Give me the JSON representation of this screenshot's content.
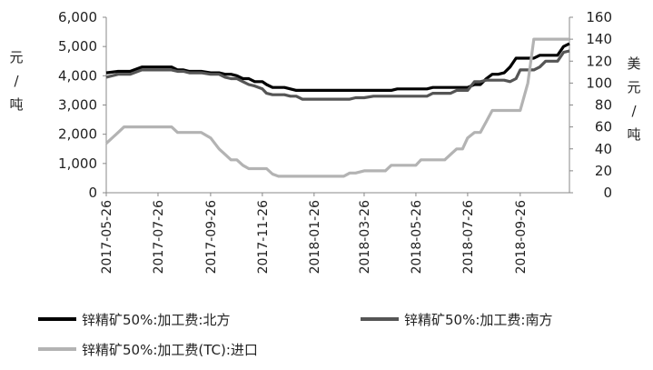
{
  "chart_data": {
    "type": "line",
    "x_tick_labels": [
      "2017-05-26",
      "2017-07-26",
      "2017-09-26",
      "2017-11-26",
      "2018-01-26",
      "2018-03-26",
      "2018-05-26",
      "2018-07-26",
      "2018-09-26"
    ],
    "left_axis": {
      "label_chars": [
        "元",
        "/",
        "吨"
      ],
      "ylim": [
        0,
        6000
      ],
      "ticks": [
        "0",
        "1,000",
        "2,000",
        "3,000",
        "4,000",
        "5,000",
        "6,000"
      ]
    },
    "right_axis": {
      "label_chars": [
        "美",
        "元",
        "/",
        "吨"
      ],
      "ylim": [
        0,
        160
      ],
      "ticks": [
        "0",
        "20",
        "40",
        "60",
        "80",
        "100",
        "120",
        "140",
        "160"
      ]
    },
    "grid": false,
    "legend_position": "bottom",
    "x_dates": [
      "2017-05-26",
      "2017-06-09",
      "2017-06-16",
      "2017-06-23",
      "2017-07-07",
      "2017-07-14",
      "2017-07-26",
      "2017-08-04",
      "2017-08-11",
      "2017-08-18",
      "2017-08-25",
      "2017-09-01",
      "2017-09-15",
      "2017-09-26",
      "2017-10-06",
      "2017-10-13",
      "2017-10-20",
      "2017-10-27",
      "2017-11-03",
      "2017-11-10",
      "2017-11-17",
      "2017-11-26",
      "2017-12-01",
      "2017-12-08",
      "2017-12-15",
      "2017-12-22",
      "2017-12-29",
      "2018-01-05",
      "2018-01-12",
      "2018-01-19",
      "2018-01-26",
      "2018-02-02",
      "2018-02-09",
      "2018-02-23",
      "2018-03-02",
      "2018-03-09",
      "2018-03-16",
      "2018-03-26",
      "2018-04-06",
      "2018-04-13",
      "2018-04-20",
      "2018-04-27",
      "2018-05-04",
      "2018-05-11",
      "2018-05-18",
      "2018-05-26",
      "2018-06-01",
      "2018-06-08",
      "2018-06-15",
      "2018-06-22",
      "2018-06-29",
      "2018-07-06",
      "2018-07-13",
      "2018-07-20",
      "2018-07-26",
      "2018-08-03",
      "2018-08-10",
      "2018-08-17",
      "2018-08-24",
      "2018-08-31",
      "2018-09-07",
      "2018-09-14",
      "2018-09-21",
      "2018-09-26",
      "2018-10-05",
      "2018-10-12",
      "2018-10-19",
      "2018-10-26",
      "2018-11-02",
      "2018-11-09",
      "2018-11-16",
      "2018-11-23"
    ],
    "series": [
      {
        "name": "锌精矿50%:加工费:北方",
        "axis": "left",
        "color": "#000000",
        "values": [
          4100,
          4150,
          4150,
          4150,
          4300,
          4300,
          4300,
          4300,
          4300,
          4200,
          4200,
          4150,
          4150,
          4100,
          4100,
          4050,
          4050,
          4000,
          3900,
          3900,
          3800,
          3800,
          3700,
          3600,
          3600,
          3600,
          3550,
          3500,
          3500,
          3500,
          3500,
          3500,
          3500,
          3500,
          3500,
          3500,
          3500,
          3500,
          3500,
          3500,
          3500,
          3500,
          3550,
          3550,
          3550,
          3550,
          3550,
          3550,
          3600,
          3600,
          3600,
          3600,
          3600,
          3600,
          3600,
          3700,
          3700,
          3900,
          4050,
          4050,
          4100,
          4300,
          4600,
          4600,
          4600,
          4600,
          4700,
          4700,
          4700,
          4700,
          5000,
          5100
        ]
      },
      {
        "name": "锌精矿50%:加工费:南方",
        "axis": "left",
        "color": "#555555",
        "values": [
          3950,
          4050,
          4050,
          4050,
          4200,
          4200,
          4200,
          4200,
          4200,
          4150,
          4150,
          4100,
          4100,
          4050,
          4050,
          3950,
          3900,
          3900,
          3800,
          3700,
          3650,
          3550,
          3400,
          3350,
          3350,
          3350,
          3300,
          3300,
          3200,
          3200,
          3200,
          3200,
          3200,
          3200,
          3200,
          3200,
          3250,
          3250,
          3300,
          3300,
          3300,
          3300,
          3300,
          3300,
          3300,
          3300,
          3300,
          3300,
          3400,
          3400,
          3400,
          3400,
          3500,
          3500,
          3500,
          3800,
          3800,
          3850,
          3850,
          3850,
          3850,
          3800,
          3900,
          4200,
          4200,
          4200,
          4300,
          4500,
          4500,
          4500,
          4800,
          4850
        ]
      },
      {
        "name": "锌精矿50%:加工费(TC):进口",
        "axis": "right",
        "color": "#b3b3b3",
        "values": [
          45,
          55,
          60,
          60,
          60,
          60,
          60,
          60,
          60,
          55,
          55,
          55,
          55,
          50,
          40,
          35,
          30,
          30,
          25,
          22,
          22,
          22,
          22,
          17,
          15,
          15,
          15,
          15,
          15,
          15,
          15,
          15,
          15,
          15,
          15,
          18,
          18,
          20,
          20,
          20,
          20,
          25,
          25,
          25,
          25,
          25,
          30,
          30,
          30,
          30,
          30,
          35,
          40,
          40,
          50,
          55,
          55,
          65,
          75,
          75,
          75,
          75,
          75,
          75,
          100,
          140,
          140,
          140,
          140,
          140,
          140,
          140
        ]
      }
    ]
  }
}
